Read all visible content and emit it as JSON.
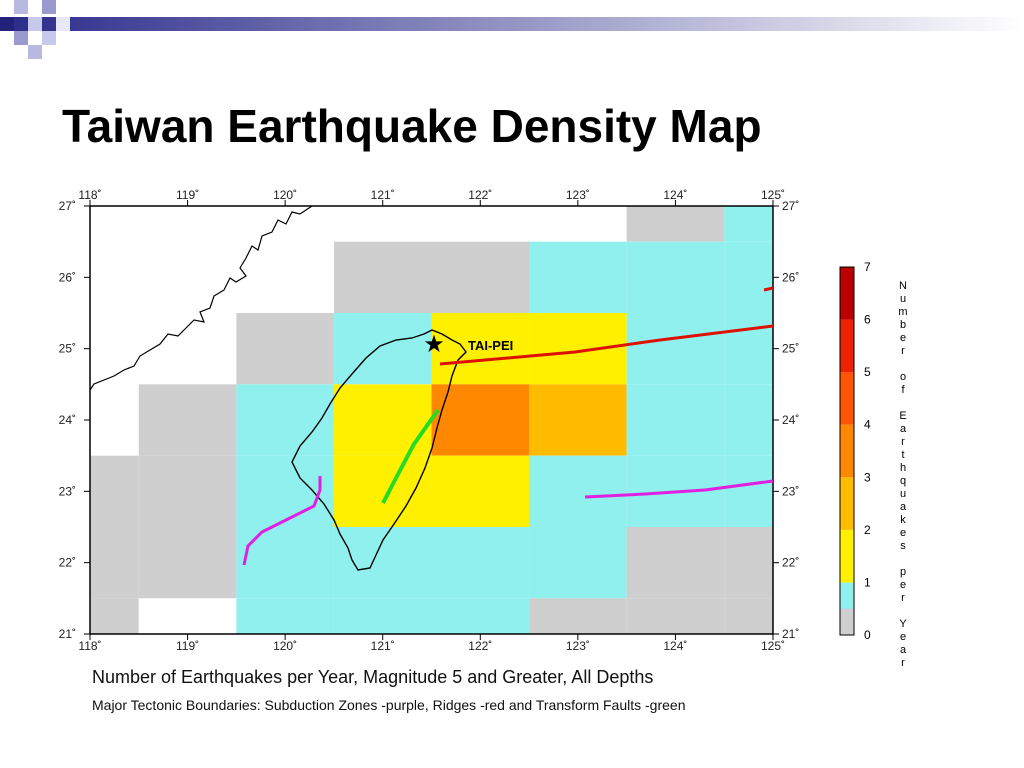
{
  "slide": {
    "title": "Taiwan Earthquake Density Map"
  },
  "map": {
    "top_longitudes": [
      "118˚",
      "119˚",
      "120˚",
      "121˚",
      "122˚",
      "123˚",
      "124˚",
      "125˚"
    ],
    "bottom_longitudes": [
      "118˚",
      "119˚",
      "120˚",
      "121˚",
      "122˚",
      "123˚",
      "124˚",
      "125˚"
    ],
    "latitudes": [
      "27˚",
      "26˚",
      "25˚",
      "24˚",
      "23˚",
      "22˚",
      "21˚"
    ],
    "city_label": "TAI-PEI",
    "grid_values": [
      [
        -1,
        -1,
        -1,
        -1,
        -1,
        -1,
        0,
        1
      ],
      [
        -1,
        -1,
        -1,
        0,
        0,
        1,
        1,
        1
      ],
      [
        -1,
        -1,
        0,
        1,
        2,
        2,
        1,
        1
      ],
      [
        -1,
        0,
        1,
        2,
        4,
        3,
        1,
        1
      ],
      [
        0,
        0,
        1,
        2,
        2,
        1,
        1,
        1
      ],
      [
        0,
        0,
        1,
        1,
        1,
        1,
        0,
        0
      ],
      [
        0,
        -1,
        1,
        1,
        1,
        0,
        0,
        0
      ]
    ],
    "boundary_colors": {
      "subduction": "#e020e0",
      "ridge": "#dd1100",
      "transform": "#22dd22"
    },
    "colors": {
      "no_data": "#ffffff",
      "level_0": "#cfcfcf",
      "level_1": "#8ff0ee",
      "level_2": "#fff000",
      "level_3": "#ffbb00",
      "level_4": "#ff8800",
      "level_5": "#ff5500",
      "level_6": "#ee2200",
      "level_7": "#bb0000",
      "coast": "#000000"
    }
  },
  "colorbar": {
    "ticks": [
      "7",
      "6",
      "5",
      "4",
      "3",
      "2",
      "1",
      "0"
    ],
    "label": "Number of Earthquakes per Year"
  },
  "captions": {
    "line1": "Number of Earthquakes per Year, Magnitude 5 and Greater, All Depths",
    "line2": "Major Tectonic Boundaries: Subduction Zones -purple, Ridges -red and Transform Faults -green"
  }
}
